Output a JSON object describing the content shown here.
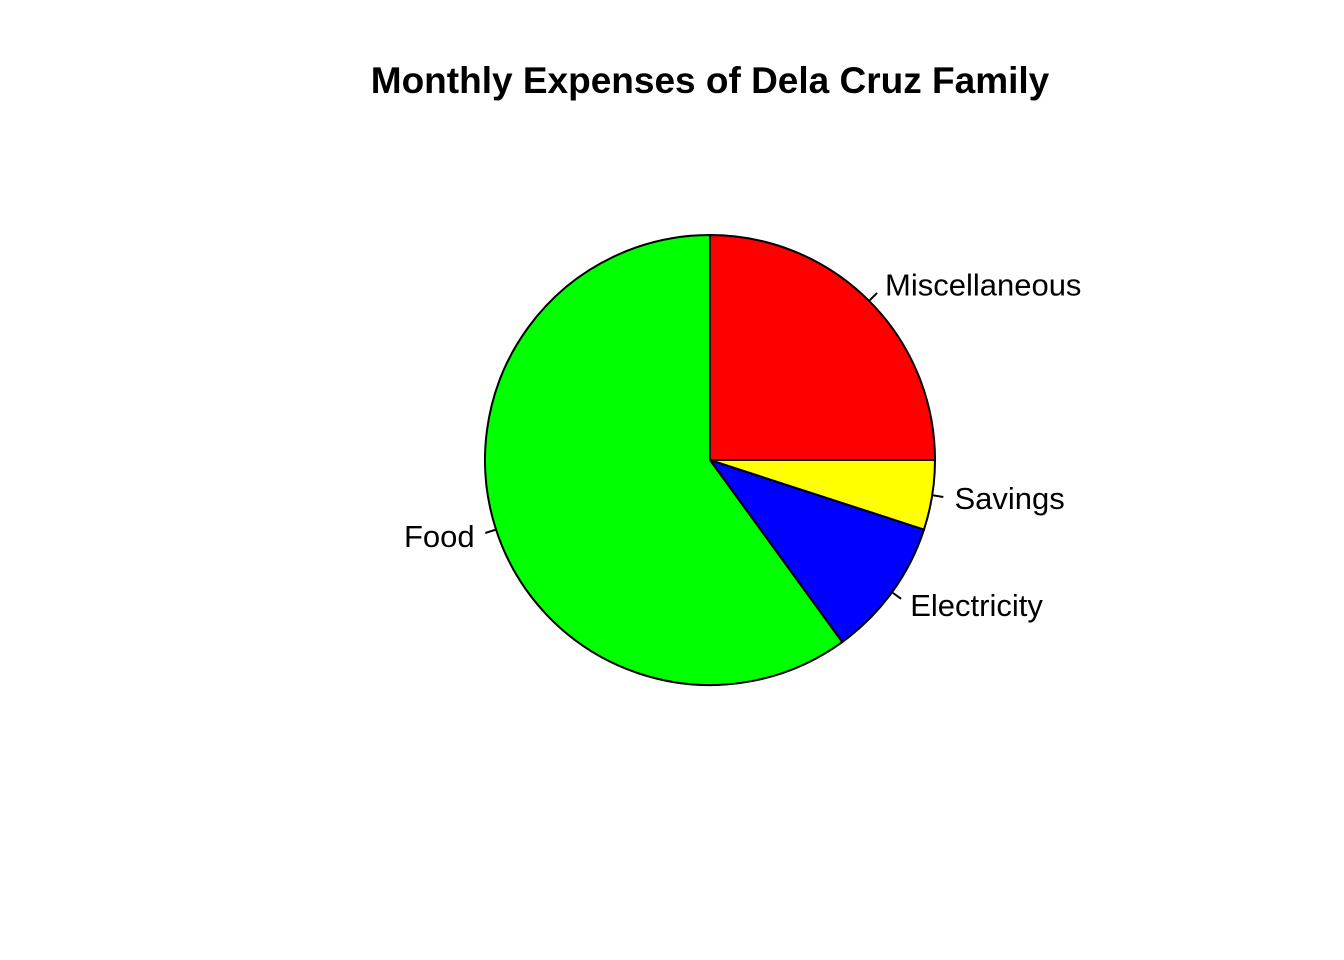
{
  "chart_data": {
    "type": "pie",
    "title": "Monthly Expenses of Dela Cruz Family",
    "slices": [
      {
        "label": "Miscellaneous",
        "value": 25,
        "color": "#FF0000"
      },
      {
        "label": "Food",
        "value": 60,
        "color": "#00FF00"
      },
      {
        "label": "Electricity",
        "value": 10,
        "color": "#0000FF"
      },
      {
        "label": "Savings",
        "value": 5,
        "color": "#FFFF00"
      }
    ],
    "direction": "counterclockwise",
    "start_angle_deg": 0,
    "legend": "none"
  }
}
